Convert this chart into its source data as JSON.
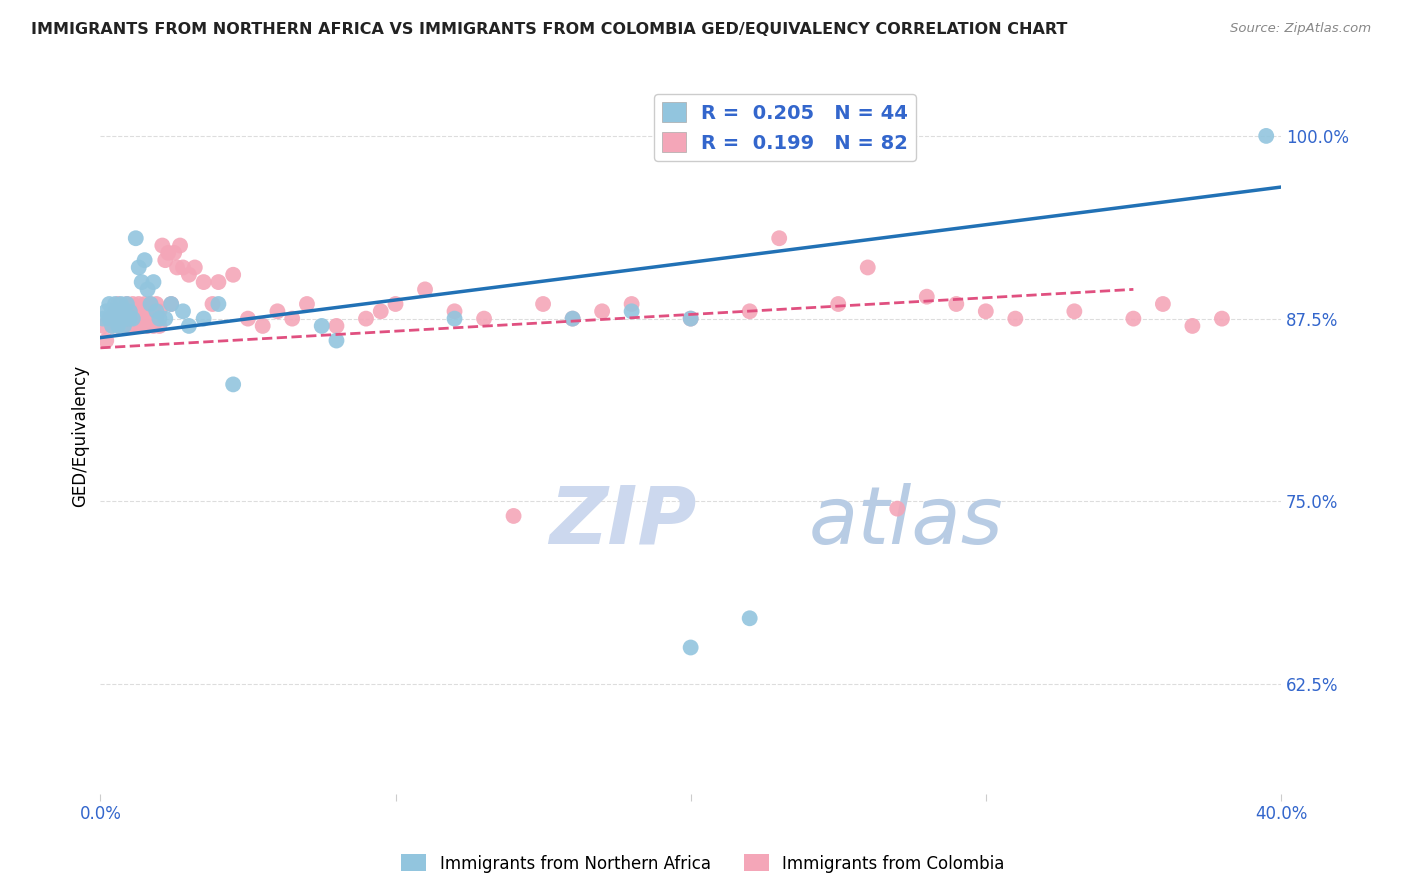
{
  "title": "IMMIGRANTS FROM NORTHERN AFRICA VS IMMIGRANTS FROM COLOMBIA GED/EQUIVALENCY CORRELATION CHART",
  "source": "Source: ZipAtlas.com",
  "ylabel": "GED/Equivalency",
  "y_ticks": [
    62.5,
    75.0,
    87.5,
    100.0
  ],
  "x_range": [
    0.0,
    40.0
  ],
  "y_range": [
    55.0,
    104.0
  ],
  "legend_blue_r": "0.205",
  "legend_blue_n": "44",
  "legend_pink_r": "0.199",
  "legend_pink_n": "82",
  "blue_color": "#92c5de",
  "pink_color": "#f4a6b8",
  "blue_line_color": "#2171b5",
  "pink_line_color": "#e05080",
  "watermark_zip_color": "#d0dff0",
  "watermark_atlas_color": "#c8d8e8",
  "title_color": "#222222",
  "axis_label_color": "#3366cc",
  "tick_label_color": "#3366cc",
  "blue_scatter_x": [
    0.1,
    0.2,
    0.3,
    0.3,
    0.4,
    0.4,
    0.5,
    0.5,
    0.6,
    0.6,
    0.7,
    0.7,
    0.8,
    0.8,
    0.9,
    0.9,
    1.0,
    1.0,
    1.1,
    1.2,
    1.3,
    1.4,
    1.5,
    1.6,
    1.7,
    1.8,
    1.9,
    2.0,
    2.2,
    2.4,
    2.8,
    3.0,
    3.5,
    4.0,
    4.5,
    7.5,
    8.0,
    12.0,
    16.0,
    18.0,
    20.0,
    20.0,
    39.5,
    22.0
  ],
  "blue_scatter_y": [
    87.5,
    88.0,
    87.5,
    88.5,
    87.0,
    88.0,
    87.5,
    88.5,
    87.0,
    88.0,
    87.5,
    88.5,
    87.0,
    88.0,
    87.5,
    88.5,
    87.5,
    88.0,
    87.5,
    93.0,
    91.0,
    90.0,
    91.5,
    89.5,
    88.5,
    90.0,
    88.0,
    87.5,
    87.5,
    88.5,
    88.0,
    87.0,
    87.5,
    88.5,
    83.0,
    87.0,
    86.0,
    87.5,
    87.5,
    88.0,
    87.5,
    65.0,
    100.0,
    67.0
  ],
  "pink_scatter_x": [
    0.1,
    0.2,
    0.3,
    0.4,
    0.5,
    0.5,
    0.6,
    0.6,
    0.7,
    0.7,
    0.8,
    0.8,
    0.9,
    0.9,
    1.0,
    1.0,
    1.1,
    1.1,
    1.2,
    1.2,
    1.3,
    1.3,
    1.4,
    1.4,
    1.5,
    1.5,
    1.6,
    1.6,
    1.7,
    1.7,
    1.8,
    1.8,
    1.9,
    1.9,
    2.0,
    2.0,
    2.1,
    2.2,
    2.3,
    2.4,
    2.5,
    2.6,
    2.7,
    2.8,
    3.0,
    3.2,
    3.5,
    3.8,
    4.0,
    4.5,
    5.0,
    5.5,
    6.0,
    6.5,
    7.0,
    8.0,
    9.0,
    9.5,
    10.0,
    11.0,
    12.0,
    13.0,
    15.0,
    16.0,
    17.0,
    18.0,
    20.0,
    22.0,
    23.0,
    25.0,
    26.0,
    28.0,
    29.0,
    30.0,
    31.0,
    33.0,
    35.0,
    36.0,
    37.0,
    38.0,
    14.0,
    27.0
  ],
  "pink_scatter_y": [
    87.0,
    86.0,
    87.5,
    87.0,
    87.5,
    88.0,
    87.0,
    88.5,
    87.5,
    88.0,
    87.0,
    87.5,
    87.5,
    88.5,
    87.0,
    88.0,
    87.5,
    88.5,
    87.0,
    88.0,
    87.5,
    88.5,
    87.0,
    88.0,
    87.5,
    88.5,
    87.0,
    88.0,
    87.5,
    88.5,
    87.0,
    88.0,
    87.5,
    88.5,
    87.0,
    88.0,
    92.5,
    91.5,
    92.0,
    88.5,
    92.0,
    91.0,
    92.5,
    91.0,
    90.5,
    91.0,
    90.0,
    88.5,
    90.0,
    90.5,
    87.5,
    87.0,
    88.0,
    87.5,
    88.5,
    87.0,
    87.5,
    88.0,
    88.5,
    89.5,
    88.0,
    87.5,
    88.5,
    87.5,
    88.0,
    88.5,
    87.5,
    88.0,
    93.0,
    88.5,
    91.0,
    89.0,
    88.5,
    88.0,
    87.5,
    88.0,
    87.5,
    88.5,
    87.0,
    87.5,
    74.0,
    74.5
  ]
}
